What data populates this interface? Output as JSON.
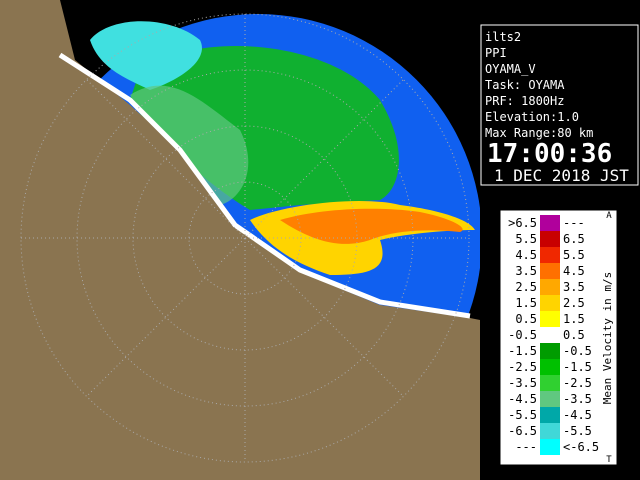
{
  "info": {
    "lines": [
      "ilts2",
      "PPI",
      "OYAMA_V",
      "Task: OYAMA",
      "PRF: 1800Hz",
      "Elevation:1.0",
      "Max Range:80 km"
    ],
    "time": "17:00:36",
    "date": "1 DEC 2018 JST"
  },
  "legend": {
    "title": "Mean Velocity in m/s",
    "top_mark": "A",
    "bottom_mark": "T",
    "rows": [
      {
        "left": ">6.5",
        "right": "---",
        "color": "#b0009c"
      },
      {
        "left": "5.5",
        "right": "6.5",
        "color": "#c80000"
      },
      {
        "left": "4.5",
        "right": "5.5",
        "color": "#f02800"
      },
      {
        "left": "3.5",
        "right": "4.5",
        "color": "#ff7000"
      },
      {
        "left": "2.5",
        "right": "3.5",
        "color": "#ffa800"
      },
      {
        "left": "1.5",
        "right": "2.5",
        "color": "#ffd400"
      },
      {
        "left": "0.5",
        "right": "1.5",
        "color": "#ffff00"
      },
      {
        "left": "-0.5",
        "right": "0.5",
        "color": "#ffffff"
      },
      {
        "left": "-1.5",
        "right": "-0.5",
        "color": "#009c00"
      },
      {
        "left": "-2.5",
        "right": "-1.5",
        "color": "#00c000"
      },
      {
        "left": "-3.5",
        "right": "-2.5",
        "color": "#30d030"
      },
      {
        "left": "-4.5",
        "right": "-3.5",
        "color": "#60c880"
      },
      {
        "left": "-5.5",
        "right": "-4.5",
        "color": "#00a8a8"
      },
      {
        "left": "-6.5",
        "right": "-5.5",
        "color": "#40d8d8"
      },
      {
        "left": "---",
        "right": "<-6.5",
        "color": "#00ffff"
      }
    ]
  }
}
